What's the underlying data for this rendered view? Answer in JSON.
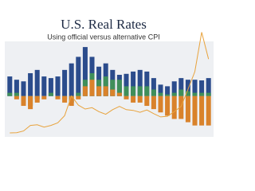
{
  "chart_data": {
    "type": "bar",
    "title": "U.S. Real Rates",
    "subtitle": "Using official versus alternative CPI",
    "categories": [
      null,
      null,
      null,
      null,
      null,
      null,
      null,
      null,
      null,
      null,
      null,
      null,
      null,
      null,
      null,
      null,
      null,
      null,
      null,
      null,
      null,
      null,
      null,
      null,
      null,
      null,
      null,
      null,
      null,
      null
    ],
    "series": [
      {
        "color": "#2b4c8c",
        "values": [
          6,
          5,
          4.5,
          7,
          8,
          6,
          5.5,
          6,
          8,
          10,
          12,
          15,
          12,
          9,
          10,
          8,
          6.5,
          6.8,
          7.5,
          8,
          7.5,
          5.5,
          3.5,
          3,
          4.5,
          5.5,
          5,
          5,
          4.8,
          5.5
        ]
      },
      {
        "color": "#3f8f5a",
        "values": [
          1,
          1,
          -2,
          -3,
          -1,
          0,
          1,
          0,
          -1,
          -2,
          1,
          5,
          7,
          5,
          6,
          5,
          5,
          3,
          3,
          3,
          3,
          2,
          1,
          0.5,
          1,
          2,
          1.5,
          1,
          1,
          1
        ]
      },
      {
        "color": "#d9822b",
        "values": [
          0,
          -1,
          -3,
          -4,
          -2,
          -1,
          0,
          -1,
          -2,
          -3,
          -1,
          3,
          5,
          3,
          3,
          2,
          1,
          -1,
          -2,
          -2,
          -3,
          -4,
          -5,
          -6,
          -7,
          -7,
          -8,
          -9,
          -9,
          -9
        ]
      },
      {
        "color": "#e8a33d",
        "axis": "y2",
        "values": [
          36,
          40,
          65,
          150,
          160,
          125,
          150,
          190,
          300,
          600,
          460,
          400,
          420,
          360,
          320,
          390,
          440,
          390,
          380,
          350,
          385,
          330,
          280,
          290,
          360,
          440,
          700,
          970,
          1570,
          1160
        ]
      }
    ],
    "ylim": [
      -12,
      16
    ],
    "y2lim": [
      0,
      2000
    ]
  }
}
